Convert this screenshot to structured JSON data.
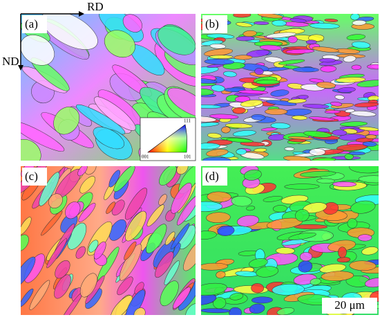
{
  "panels": [
    {
      "label": "(a)"
    },
    {
      "label": "(b)"
    },
    {
      "label": "(c)"
    },
    {
      "label": "(d)"
    }
  ],
  "axes": {
    "rd": "RD",
    "nd": "ND"
  },
  "ipf_legend": {
    "top": "111",
    "left": "001",
    "right": "101"
  },
  "scale_bar": "20 μm"
}
